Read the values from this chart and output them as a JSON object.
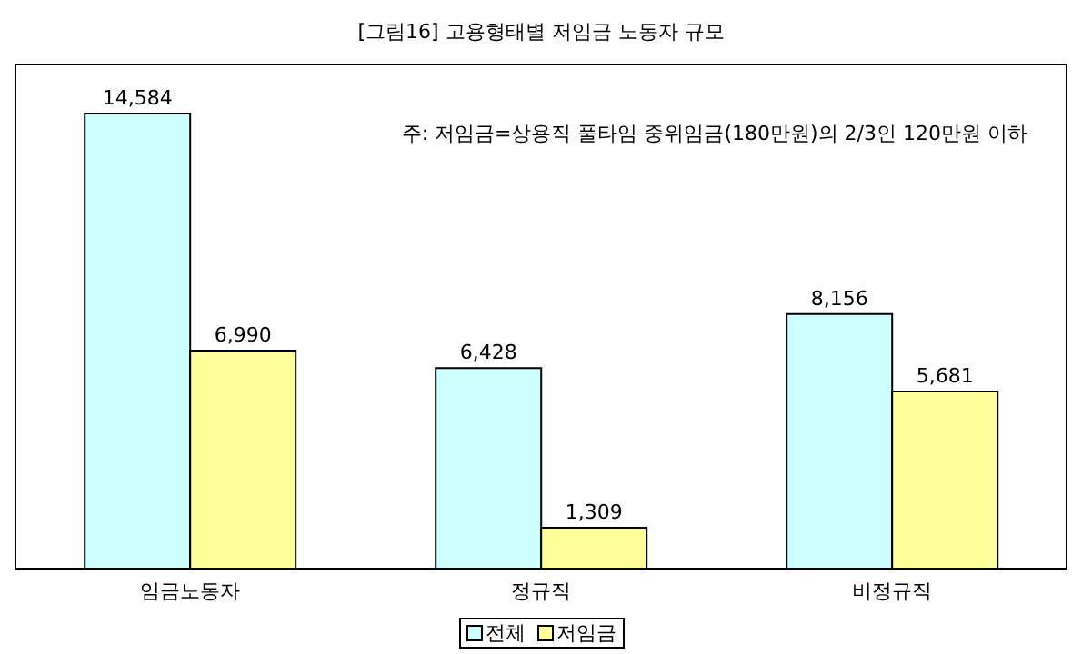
{
  "chart_data": {
    "type": "bar",
    "title": "[그림16] 고용형태별 저임금 노동자 규모",
    "categories": [
      "임금노동자",
      "정규직",
      "비정규직"
    ],
    "series": [
      {
        "name": "전체",
        "color": "#ccffff",
        "values": [
          14584,
          6428,
          8156
        ],
        "value_labels": [
          "14,584",
          "6,428",
          "8,156"
        ]
      },
      {
        "name": "저임금",
        "color": "#ffff99",
        "values": [
          6990,
          1309,
          5681
        ],
        "value_labels": [
          "6,990",
          "1,309",
          "5,681"
        ]
      }
    ],
    "legend": "bottom",
    "grid": false,
    "annotations": [
      "주: 저임금=상용직 풀타임 중위임금(180만원)의 2/3인 120만원 이하"
    ]
  }
}
